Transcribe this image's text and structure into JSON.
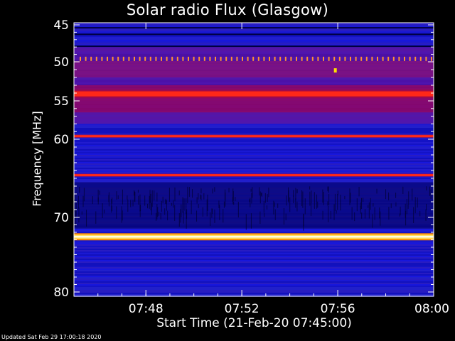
{
  "chart_data": {
    "type": "heatmap",
    "title": "Solar radio Flux (Glasgow)",
    "xlabel": "Start Time (21-Feb-20 07:45:00)",
    "ylabel": "Frequency [MHz]",
    "footer": "Updated Sat Feb 29 17:00:18 2020",
    "x_range": [
      "07:45",
      "08:00"
    ],
    "x_ticks": [
      {
        "label": "07:48",
        "minute": 3
      },
      {
        "label": "07:52",
        "minute": 7
      },
      {
        "label": "07:56",
        "minute": 11
      },
      {
        "label": "08:00",
        "minute": 15
      }
    ],
    "y_range": [
      45,
      80
    ],
    "y_ticks": [
      45,
      50,
      55,
      60,
      70,
      80
    ],
    "colormap": [
      "#000000",
      "#0000ff",
      "#ff0000",
      "#ffff00",
      "#ffffff"
    ],
    "emission_bands_mhz": [
      {
        "mhz": 49.6,
        "level": "dotted-orange"
      },
      {
        "mhz": 54.1,
        "level": "high"
      },
      {
        "mhz": 59.6,
        "level": "high"
      },
      {
        "mhz": 64.6,
        "level": "high"
      },
      {
        "mhz": 72.6,
        "level": "very-high"
      }
    ]
  }
}
